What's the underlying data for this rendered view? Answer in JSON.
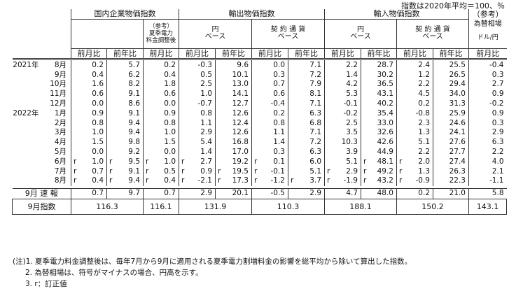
{
  "top_note": "指数は2020年平均＝100、％",
  "headers": {
    "domestic": "国内企業物価指数",
    "domestic_sub": "（参考）\n夏季電力\n料金調整後",
    "export": "輸出物価指数",
    "import": "輸入物価指数",
    "ref": "（参考）",
    "fx": "為替相場",
    "fx_unit": "ドル/円",
    "yen_basis": "円\nベース",
    "contract_basis": "契 約 通 貨\nベース",
    "mom": "前月比",
    "yoy": "前年比"
  },
  "rows": [
    {
      "year": "2021年",
      "month": "8月",
      "r": [
        "",
        "",
        "",
        "",
        "",
        "",
        "",
        "",
        "",
        ""
      ],
      "v": [
        "0.2",
        "5.7",
        "0.2",
        "-0.3",
        "9.6",
        "0.0",
        "7.1",
        "2.2",
        "28.7",
        "2.4",
        "25.5",
        "-0.4"
      ]
    },
    {
      "year": "",
      "month": "9月",
      "r": [
        "",
        "",
        "",
        "",
        "",
        "",
        "",
        "",
        "",
        ""
      ],
      "v": [
        "0.4",
        "6.2",
        "0.4",
        "0.5",
        "10.1",
        "0.3",
        "7.2",
        "1.4",
        "30.2",
        "1.2",
        "26.5",
        "0.3"
      ]
    },
    {
      "year": "",
      "month": "10月",
      "r": [
        "",
        "",
        "",
        "",
        "",
        "",
        "",
        "",
        "",
        ""
      ],
      "v": [
        "1.6",
        "8.2",
        "1.8",
        "2.5",
        "13.0",
        "0.7",
        "7.9",
        "4.2",
        "36.5",
        "2.2",
        "29.4",
        "2.7"
      ]
    },
    {
      "year": "",
      "month": "11月",
      "r": [
        "",
        "",
        "",
        "",
        "",
        "",
        "",
        "",
        "",
        ""
      ],
      "v": [
        "0.6",
        "9.1",
        "0.6",
        "1.0",
        "14.1",
        "0.6",
        "8.1",
        "5.3",
        "43.1",
        "4.5",
        "34.0",
        "0.9"
      ]
    },
    {
      "year": "",
      "month": "12月",
      "r": [
        "",
        "",
        "",
        "",
        "",
        "",
        "",
        "",
        "",
        ""
      ],
      "v": [
        "0.0",
        "8.6",
        "0.0",
        "-0.7",
        "12.7",
        "-0.4",
        "7.1",
        "-0.1",
        "40.2",
        "0.2",
        "31.3",
        "-0.2"
      ]
    },
    {
      "year": "2022年",
      "month": "1月",
      "r": [
        "",
        "",
        "",
        "",
        "",
        "",
        "",
        "",
        "",
        ""
      ],
      "v": [
        "0.9",
        "9.1",
        "0.9",
        "0.8",
        "12.6",
        "0.2",
        "6.3",
        "-0.2",
        "35.4",
        "-0.8",
        "25.9",
        "0.9"
      ]
    },
    {
      "year": "",
      "month": "2月",
      "r": [
        "",
        "",
        "",
        "",
        "",
        "",
        "",
        "",
        "",
        ""
      ],
      "v": [
        "0.8",
        "9.4",
        "0.8",
        "1.1",
        "12.4",
        "0.8",
        "6.8",
        "2.5",
        "33.0",
        "2.3",
        "24.6",
        "0.3"
      ]
    },
    {
      "year": "",
      "month": "3月",
      "r": [
        "",
        "",
        "",
        "",
        "",
        "",
        "",
        "",
        "",
        ""
      ],
      "v": [
        "1.0",
        "9.4",
        "1.0",
        "2.9",
        "12.6",
        "1.1",
        "7.1",
        "3.5",
        "32.6",
        "1.3",
        "24.1",
        "2.9"
      ]
    },
    {
      "year": "",
      "month": "4月",
      "r": [
        "",
        "",
        "",
        "",
        "",
        "",
        "",
        "",
        "",
        ""
      ],
      "v": [
        "1.5",
        "9.8",
        "1.5",
        "5.4",
        "16.8",
        "1.4",
        "7.2",
        "10.3",
        "42.6",
        "5.1",
        "27.6",
        "6.3"
      ]
    },
    {
      "year": "",
      "month": "5月",
      "r": [
        "",
        "",
        "",
        "",
        "",
        "",
        "",
        "",
        "",
        ""
      ],
      "v": [
        "0.0",
        "9.2",
        "0.0",
        "1.4",
        "17.0",
        "0.3",
        "6.3",
        "3.9",
        "44.9",
        "2.2",
        "27.7",
        "2.2"
      ]
    },
    {
      "year": "",
      "month": "6月",
      "r": [
        "r",
        "r",
        "r",
        "r",
        "",
        "r",
        "",
        "",
        "r",
        "r"
      ],
      "v": [
        "1.0",
        "9.5",
        "1.0",
        "2.7",
        "19.2",
        "0.1",
        "6.0",
        "5.1",
        "48.1",
        "2.0",
        "27.4",
        "4.0"
      ]
    },
    {
      "year": "",
      "month": "7月",
      "r": [
        "r",
        "r",
        "r",
        "r",
        "r",
        "r",
        "",
        "r",
        "r",
        "r"
      ],
      "v": [
        "0.7",
        "9.1",
        "0.5",
        "0.9",
        "19.5",
        "-0.1",
        "5.1",
        "2.9",
        "49.2",
        "1.3",
        "26.3",
        "2.1"
      ]
    },
    {
      "year": "",
      "month": "8月",
      "r": [
        "r",
        "r",
        "r",
        "r",
        "r",
        "r",
        "r",
        "r",
        "r",
        "r"
      ],
      "v": [
        "0.4",
        "9.4",
        "0.4",
        "-2.1",
        "17.3",
        "-1.2",
        "3.7",
        "-1.9",
        "43.2",
        "-0.9",
        "22.3",
        "-1.1"
      ]
    }
  ],
  "flash_row": {
    "label": "9月 速 報",
    "v": [
      "0.7",
      "9.7",
      "0.7",
      "2.9",
      "20.1",
      "-0.5",
      "2.9",
      "4.7",
      "48.0",
      "0.2",
      "21.0",
      "5.8"
    ]
  },
  "index_row": {
    "label": "9月指数",
    "v": [
      "116.3",
      "116.1",
      "131.9",
      "110.3",
      "188.1",
      "150.2",
      "143.1"
    ]
  },
  "footnotes": [
    "(注)1. 夏季電力料金調整後は、毎年7月から9月に適用される夏季電力割増料金の影響を総平均から除いて算出した指数。",
    "2. 為替相場は、符号がマイナスの場合、円高を示す。",
    "3. r：訂正値"
  ]
}
